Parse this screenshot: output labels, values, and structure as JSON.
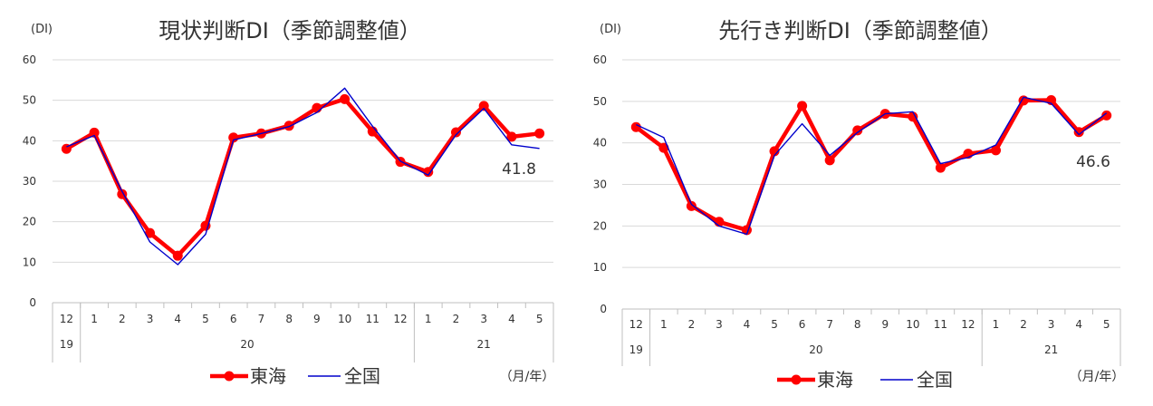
{
  "chart_data": [
    {
      "type": "line",
      "title": "現状判断DI（季節調整値）",
      "ylabel": "(DI)",
      "xunit_label": "（月/年）",
      "ylim": [
        0,
        60
      ],
      "yticks": [
        "0",
        "10",
        "20",
        "30",
        "40",
        "50",
        "60"
      ],
      "grid": true,
      "legend_position": "bottom",
      "categories": [
        "12",
        "1",
        "2",
        "3",
        "4",
        "5",
        "6",
        "7",
        "8",
        "9",
        "10",
        "11",
        "12",
        "1",
        "2",
        "3",
        "4",
        "5"
      ],
      "years": [
        {
          "label": "19",
          "count": 1
        },
        {
          "label": "20",
          "count": 12
        },
        {
          "label": "21",
          "count": 5
        }
      ],
      "annotation": "41.8",
      "series": [
        {
          "name": "東海",
          "color": "#ff0000",
          "values": [
            38.0,
            42.0,
            26.8,
            17.2,
            11.6,
            19.0,
            40.8,
            41.8,
            43.7,
            48.1,
            50.3,
            42.3,
            34.8,
            32.3,
            42.1,
            48.6,
            41.0,
            41.8
          ]
        },
        {
          "name": "全国",
          "color": "#0000cc",
          "values": [
            38.5,
            41.3,
            27.5,
            15.0,
            9.4,
            16.9,
            40.2,
            41.8,
            43.5,
            47.0,
            53.0,
            43.6,
            35.0,
            31.5,
            41.5,
            48.0,
            39.0,
            38.1
          ]
        }
      ]
    },
    {
      "type": "line",
      "title": "先行き判断DI（季節調整値）",
      "ylabel": "(DI)",
      "xunit_label": "（月/年）",
      "ylim": [
        0,
        60
      ],
      "yticks": [
        "0",
        "10",
        "20",
        "30",
        "40",
        "50",
        "60"
      ],
      "grid": true,
      "legend_position": "bottom",
      "categories": [
        "12",
        "1",
        "2",
        "3",
        "4",
        "5",
        "6",
        "7",
        "8",
        "9",
        "10",
        "11",
        "12",
        "1",
        "2",
        "3",
        "4",
        "5"
      ],
      "years": [
        {
          "label": "19",
          "count": 1
        },
        {
          "label": "20",
          "count": 12
        },
        {
          "label": "21",
          "count": 5
        }
      ],
      "annotation": "46.6",
      "series": [
        {
          "name": "東海",
          "color": "#ff0000",
          "values": [
            43.8,
            38.8,
            24.8,
            21.0,
            19.0,
            38.0,
            48.9,
            35.8,
            43.0,
            47.0,
            46.3,
            34.0,
            37.4,
            38.2,
            50.2,
            50.3,
            42.6,
            46.6
          ]
        },
        {
          "name": "全国",
          "color": "#0000cc",
          "values": [
            44.4,
            41.3,
            25.2,
            20.0,
            18.0,
            37.0,
            44.6,
            37.0,
            42.5,
            47.0,
            47.5,
            35.0,
            36.5,
            39.5,
            51.0,
            49.5,
            42.0,
            47.2
          ]
        }
      ]
    }
  ]
}
